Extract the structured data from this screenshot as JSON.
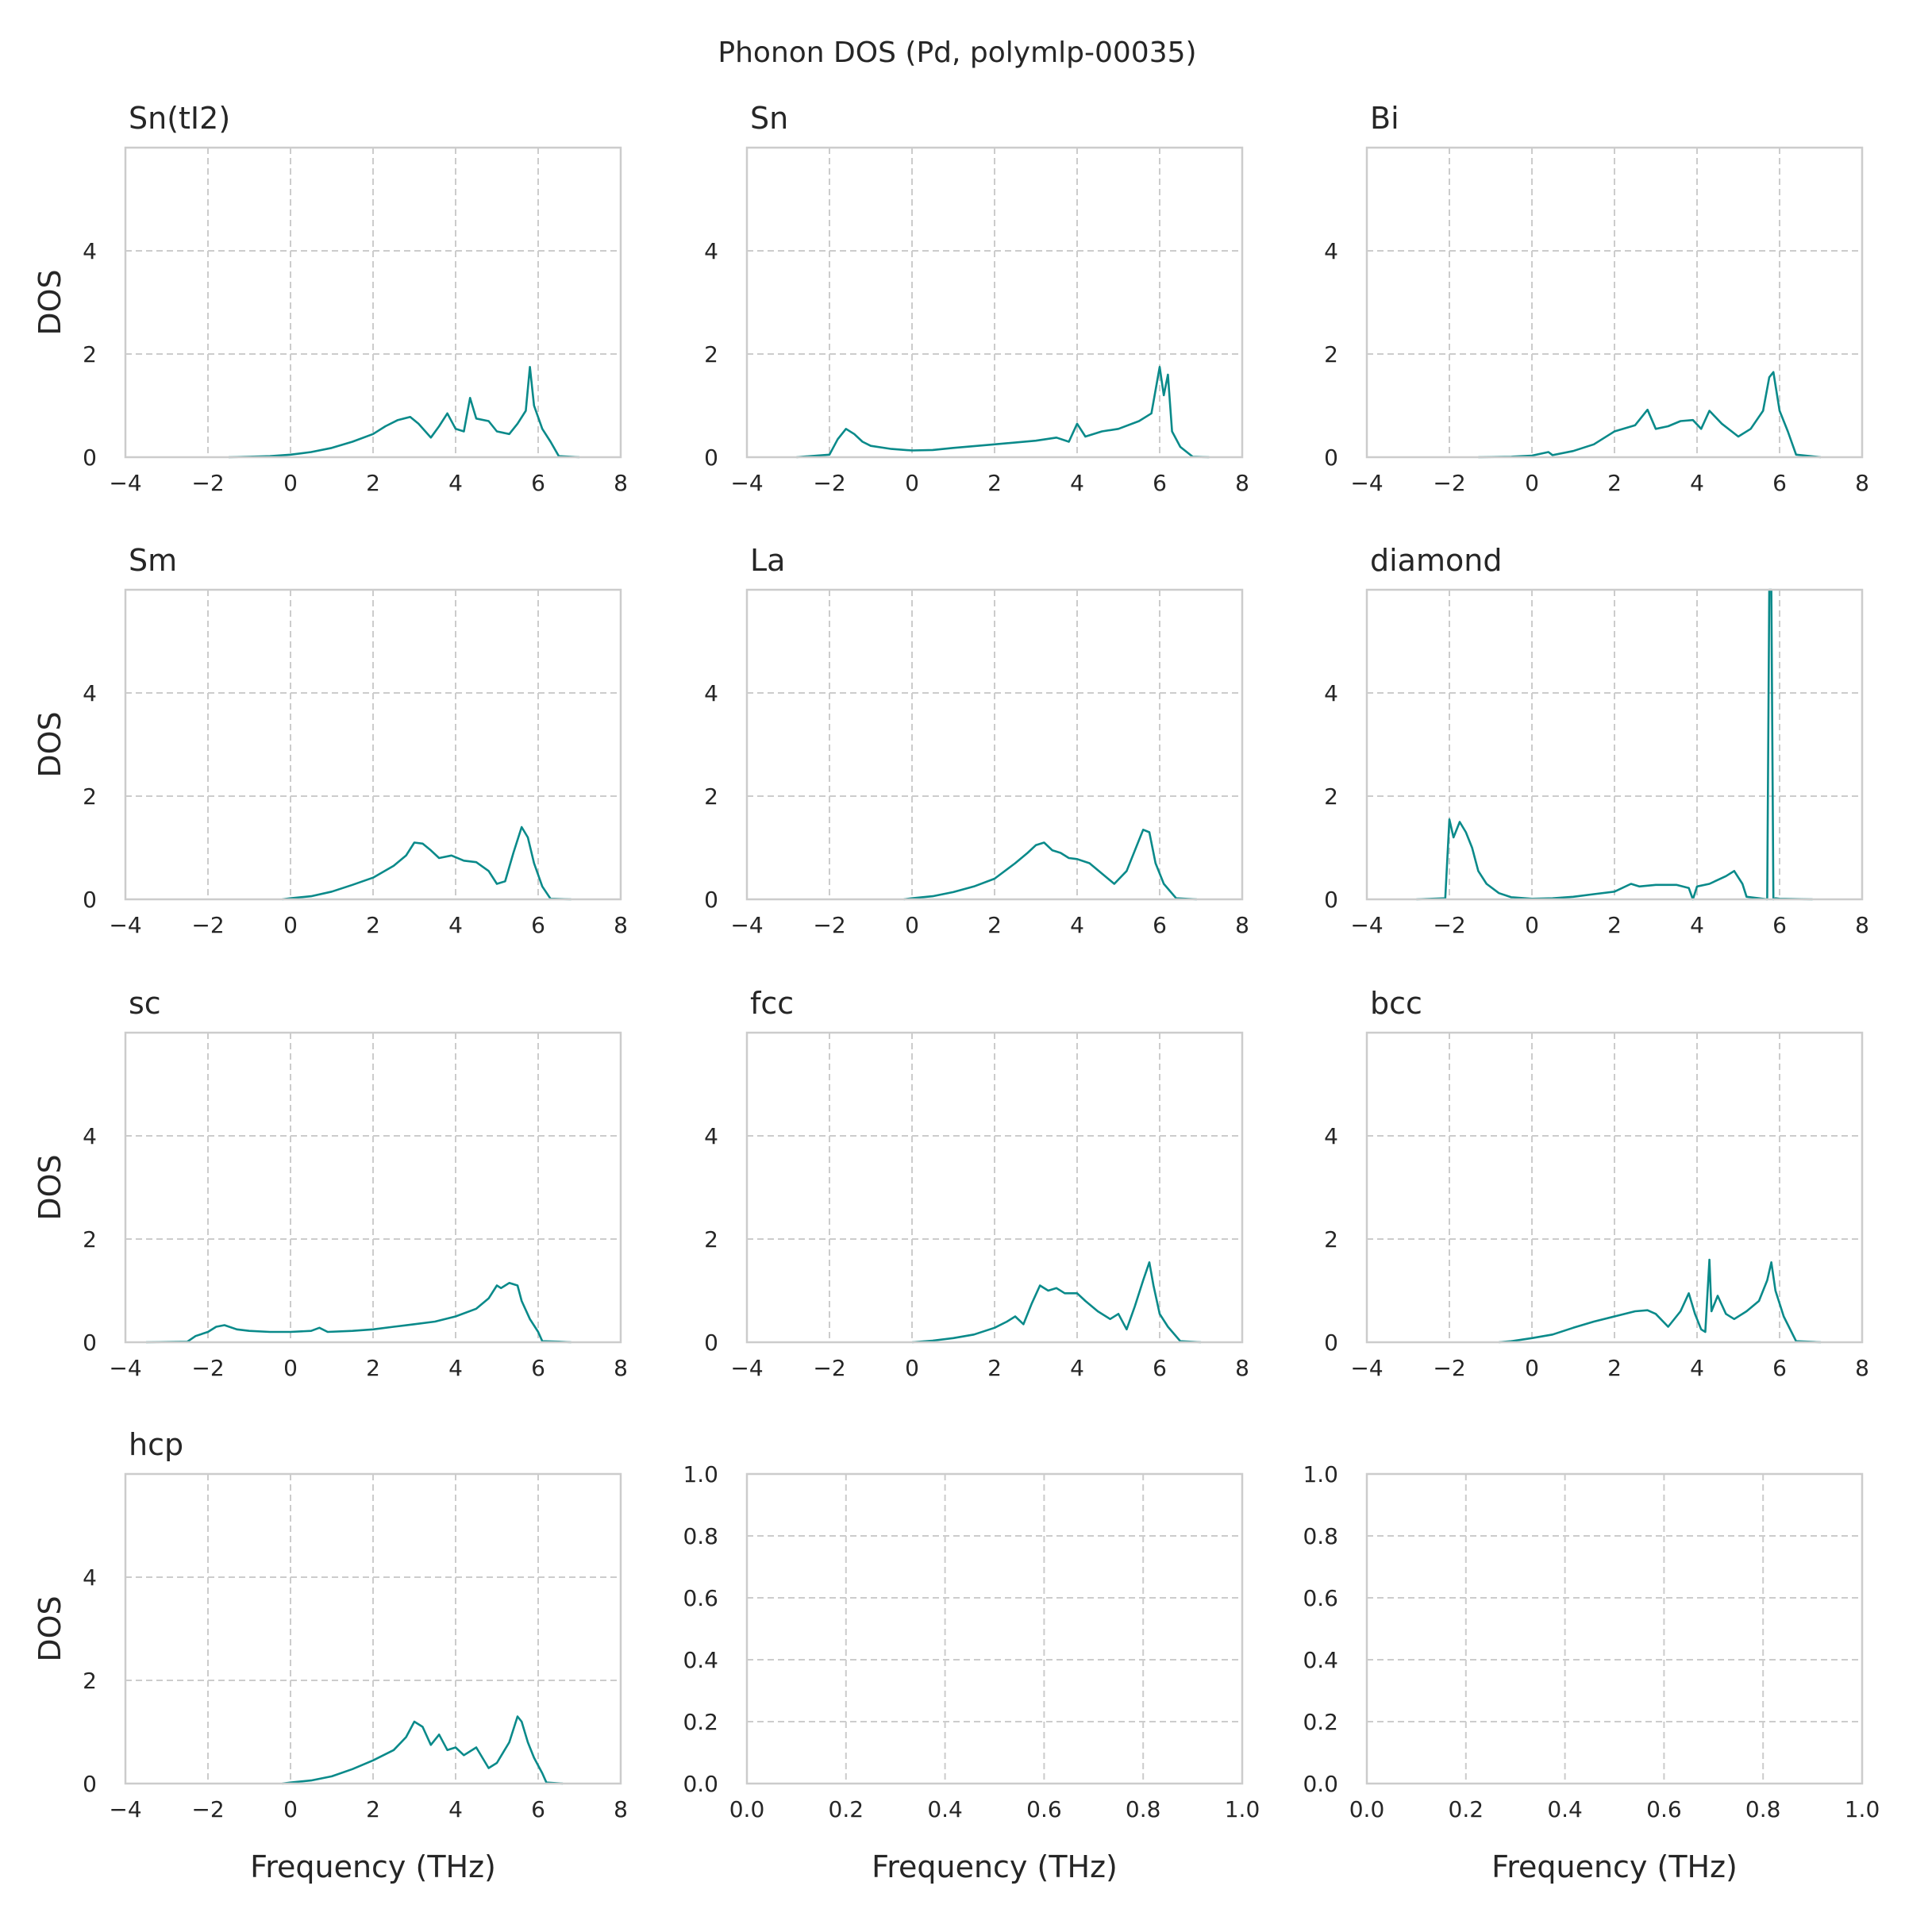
{
  "figure": {
    "title": "Phonon DOS (Pd, polymlp-00035)",
    "line_color": "#0a8a8a",
    "grid_color": "#cccccc",
    "frame_color": "#cccccc"
  },
  "chart_data": [
    {
      "type": "line",
      "title": "Sn(tI2)",
      "xlabel": "",
      "ylabel": "DOS",
      "xlim": [
        -4,
        8
      ],
      "ylim": [
        0,
        6
      ],
      "xticks": [
        -4,
        -2,
        0,
        2,
        4,
        6,
        8
      ],
      "yticks": [
        0,
        2,
        4
      ],
      "grid": true,
      "x": [
        -1.5,
        -1.0,
        -0.5,
        0.0,
        0.5,
        1.0,
        1.5,
        2.0,
        2.3,
        2.6,
        2.9,
        3.1,
        3.4,
        3.6,
        3.8,
        4.0,
        4.2,
        4.35,
        4.5,
        4.8,
        5.0,
        5.3,
        5.5,
        5.7,
        5.8,
        5.9,
        6.1,
        6.3,
        6.5,
        7.0
      ],
      "y": [
        0.0,
        0.01,
        0.02,
        0.05,
        0.1,
        0.18,
        0.3,
        0.45,
        0.6,
        0.72,
        0.78,
        0.65,
        0.38,
        0.6,
        0.85,
        0.55,
        0.5,
        1.15,
        0.75,
        0.7,
        0.5,
        0.45,
        0.65,
        0.9,
        1.75,
        1.0,
        0.55,
        0.3,
        0.02,
        0.0
      ]
    },
    {
      "type": "line",
      "title": "Sn",
      "xlabel": "",
      "ylabel": "",
      "xlim": [
        -4,
        8
      ],
      "ylim": [
        0,
        6
      ],
      "xticks": [
        -4,
        -2,
        0,
        2,
        4,
        6,
        8
      ],
      "yticks": [
        0,
        2,
        4
      ],
      "grid": true,
      "x": [
        -2.8,
        -2.0,
        -1.8,
        -1.6,
        -1.4,
        -1.2,
        -1.0,
        -0.5,
        0.0,
        0.5,
        1.0,
        2.0,
        3.0,
        3.5,
        3.8,
        4.0,
        4.2,
        4.6,
        5.0,
        5.5,
        5.8,
        6.0,
        6.1,
        6.2,
        6.3,
        6.5,
        6.8,
        7.2
      ],
      "y": [
        0.0,
        0.05,
        0.35,
        0.55,
        0.45,
        0.3,
        0.22,
        0.16,
        0.13,
        0.14,
        0.18,
        0.25,
        0.32,
        0.38,
        0.3,
        0.65,
        0.4,
        0.5,
        0.55,
        0.7,
        0.85,
        1.75,
        1.2,
        1.6,
        0.5,
        0.2,
        0.01,
        0.0
      ]
    },
    {
      "type": "line",
      "title": "Bi",
      "xlabel": "",
      "ylabel": "",
      "xlim": [
        -4,
        8
      ],
      "ylim": [
        0,
        6
      ],
      "xticks": [
        -4,
        -2,
        0,
        2,
        4,
        6,
        8
      ],
      "yticks": [
        0,
        2,
        4
      ],
      "grid": true,
      "x": [
        -1.3,
        -0.5,
        0.0,
        0.4,
        0.5,
        1.0,
        1.5,
        2.0,
        2.5,
        2.8,
        3.0,
        3.3,
        3.6,
        3.9,
        4.1,
        4.3,
        4.6,
        5.0,
        5.3,
        5.6,
        5.75,
        5.85,
        6.0,
        6.2,
        6.4,
        7.0
      ],
      "y": [
        0.0,
        0.01,
        0.03,
        0.1,
        0.04,
        0.12,
        0.25,
        0.5,
        0.62,
        0.92,
        0.55,
        0.6,
        0.7,
        0.72,
        0.55,
        0.9,
        0.65,
        0.4,
        0.55,
        0.9,
        1.55,
        1.65,
        0.9,
        0.5,
        0.05,
        0.0
      ]
    },
    {
      "type": "line",
      "title": "Sm",
      "xlabel": "",
      "ylabel": "DOS",
      "xlim": [
        -4,
        8
      ],
      "ylim": [
        0,
        6
      ],
      "xticks": [
        -4,
        -2,
        0,
        2,
        4,
        6,
        8
      ],
      "yticks": [
        0,
        2,
        4
      ],
      "grid": true,
      "x": [
        -0.2,
        0.0,
        0.5,
        1.0,
        1.5,
        2.0,
        2.5,
        2.8,
        3.0,
        3.2,
        3.4,
        3.6,
        3.9,
        4.2,
        4.5,
        4.8,
        5.0,
        5.2,
        5.4,
        5.6,
        5.75,
        5.9,
        6.1,
        6.3,
        6.8
      ],
      "y": [
        0.0,
        0.02,
        0.06,
        0.15,
        0.28,
        0.42,
        0.65,
        0.85,
        1.1,
        1.08,
        0.95,
        0.8,
        0.85,
        0.75,
        0.72,
        0.55,
        0.3,
        0.35,
        0.9,
        1.4,
        1.2,
        0.7,
        0.25,
        0.01,
        0.0
      ]
    },
    {
      "type": "line",
      "title": "La",
      "xlabel": "",
      "ylabel": "",
      "xlim": [
        -4,
        8
      ],
      "ylim": [
        0,
        6
      ],
      "xticks": [
        -4,
        -2,
        0,
        2,
        4,
        6,
        8
      ],
      "yticks": [
        0,
        2,
        4
      ],
      "grid": true,
      "x": [
        -0.2,
        0.0,
        0.5,
        1.0,
        1.5,
        2.0,
        2.5,
        2.8,
        3.0,
        3.2,
        3.4,
        3.6,
        3.8,
        4.0,
        4.3,
        4.6,
        4.9,
        5.2,
        5.4,
        5.6,
        5.75,
        5.9,
        6.1,
        6.4,
        6.9
      ],
      "y": [
        0.0,
        0.02,
        0.06,
        0.14,
        0.25,
        0.4,
        0.7,
        0.9,
        1.05,
        1.1,
        0.95,
        0.9,
        0.8,
        0.78,
        0.7,
        0.5,
        0.3,
        0.55,
        0.95,
        1.35,
        1.3,
        0.7,
        0.3,
        0.02,
        0.0
      ]
    },
    {
      "type": "line",
      "title": "diamond",
      "xlabel": "",
      "ylabel": "",
      "xlim": [
        -4,
        8
      ],
      "ylim": [
        0,
        6
      ],
      "xticks": [
        -4,
        -2,
        0,
        2,
        4,
        6,
        8
      ],
      "yticks": [
        0,
        2,
        4
      ],
      "grid": true,
      "x": [
        -2.8,
        -2.1,
        -2.0,
        -1.9,
        -1.75,
        -1.6,
        -1.45,
        -1.3,
        -1.1,
        -0.8,
        -0.5,
        0.0,
        0.5,
        1.0,
        1.5,
        2.0,
        2.4,
        2.6,
        3.0,
        3.5,
        3.8,
        3.9,
        4.0,
        4.3,
        4.7,
        4.9,
        5.1,
        5.2,
        5.5,
        5.7,
        5.75,
        5.8,
        5.85,
        5.9,
        6.0,
        6.8
      ],
      "y": [
        0.0,
        0.02,
        1.55,
        1.2,
        1.5,
        1.3,
        1.0,
        0.55,
        0.3,
        0.12,
        0.04,
        0.01,
        0.02,
        0.05,
        0.1,
        0.15,
        0.3,
        0.25,
        0.28,
        0.28,
        0.22,
        0.0,
        0.25,
        0.3,
        0.45,
        0.55,
        0.3,
        0.05,
        0.02,
        0.0,
        6.0,
        6.0,
        0.0,
        0.02,
        0.01,
        0.0
      ]
    },
    {
      "type": "line",
      "title": "sc",
      "xlabel": "",
      "ylabel": "DOS",
      "xlim": [
        -4,
        8
      ],
      "ylim": [
        0,
        6
      ],
      "xticks": [
        -4,
        -2,
        0,
        2,
        4,
        6,
        8
      ],
      "yticks": [
        0,
        2,
        4
      ],
      "grid": true,
      "x": [
        -3.5,
        -2.5,
        -2.3,
        -2.0,
        -1.8,
        -1.6,
        -1.3,
        -1.0,
        -0.5,
        0.0,
        0.5,
        0.7,
        0.9,
        1.5,
        2.0,
        2.5,
        3.0,
        3.5,
        4.0,
        4.5,
        4.8,
        5.0,
        5.1,
        5.3,
        5.5,
        5.6,
        5.8,
        6.0,
        6.1,
        6.5,
        6.8
      ],
      "y": [
        0.0,
        0.01,
        0.12,
        0.2,
        0.3,
        0.33,
        0.25,
        0.22,
        0.2,
        0.2,
        0.22,
        0.28,
        0.2,
        0.22,
        0.25,
        0.3,
        0.35,
        0.4,
        0.5,
        0.65,
        0.85,
        1.1,
        1.05,
        1.15,
        1.1,
        0.8,
        0.45,
        0.2,
        0.02,
        0.01,
        0.0
      ]
    },
    {
      "type": "line",
      "title": "fcc",
      "xlabel": "",
      "ylabel": "",
      "xlim": [
        -4,
        8
      ],
      "ylim": [
        0,
        6
      ],
      "xticks": [
        -4,
        -2,
        0,
        2,
        4,
        6,
        8
      ],
      "yticks": [
        0,
        2,
        4
      ],
      "grid": true,
      "x": [
        0.0,
        0.5,
        1.0,
        1.5,
        2.0,
        2.3,
        2.5,
        2.7,
        2.9,
        3.1,
        3.3,
        3.5,
        3.7,
        4.0,
        4.2,
        4.5,
        4.8,
        5.0,
        5.2,
        5.4,
        5.6,
        5.75,
        5.85,
        6.0,
        6.2,
        6.5,
        7.0
      ],
      "y": [
        0.0,
        0.03,
        0.08,
        0.15,
        0.28,
        0.4,
        0.5,
        0.35,
        0.75,
        1.1,
        1.0,
        1.05,
        0.95,
        0.95,
        0.8,
        0.6,
        0.45,
        0.55,
        0.25,
        0.7,
        1.2,
        1.55,
        1.1,
        0.55,
        0.3,
        0.02,
        0.0
      ]
    },
    {
      "type": "line",
      "title": "bcc",
      "xlabel": "",
      "ylabel": "",
      "xlim": [
        -4,
        8
      ],
      "ylim": [
        0,
        6
      ],
      "xticks": [
        -4,
        -2,
        0,
        2,
        4,
        6,
        8
      ],
      "yticks": [
        0,
        2,
        4
      ],
      "grid": true,
      "x": [
        -0.8,
        -0.5,
        0.0,
        0.5,
        1.0,
        1.5,
        2.0,
        2.5,
        2.8,
        3.0,
        3.3,
        3.6,
        3.8,
        3.95,
        4.1,
        4.2,
        4.3,
        4.35,
        4.5,
        4.7,
        4.9,
        5.2,
        5.5,
        5.7,
        5.8,
        5.9,
        6.1,
        6.4,
        7.0
      ],
      "y": [
        0.0,
        0.02,
        0.08,
        0.15,
        0.28,
        0.4,
        0.5,
        0.6,
        0.62,
        0.55,
        0.3,
        0.6,
        0.95,
        0.55,
        0.25,
        0.2,
        1.6,
        0.6,
        0.9,
        0.55,
        0.45,
        0.6,
        0.8,
        1.2,
        1.55,
        1.0,
        0.5,
        0.02,
        0.0
      ]
    },
    {
      "type": "line",
      "title": "hcp",
      "xlabel": "Frequency (THz)",
      "ylabel": "DOS",
      "xlim": [
        -4,
        8
      ],
      "ylim": [
        0,
        6
      ],
      "xticks": [
        -4,
        -2,
        0,
        2,
        4,
        6,
        8
      ],
      "yticks": [
        0,
        2,
        4
      ],
      "grid": true,
      "x": [
        -0.2,
        0.0,
        0.5,
        1.0,
        1.5,
        2.0,
        2.5,
        2.8,
        3.0,
        3.2,
        3.4,
        3.6,
        3.8,
        4.0,
        4.2,
        4.5,
        4.8,
        5.0,
        5.3,
        5.5,
        5.6,
        5.75,
        5.9,
        6.1,
        6.2,
        6.6
      ],
      "y": [
        0.0,
        0.02,
        0.06,
        0.14,
        0.28,
        0.45,
        0.65,
        0.9,
        1.2,
        1.1,
        0.75,
        0.95,
        0.65,
        0.7,
        0.55,
        0.7,
        0.3,
        0.4,
        0.8,
        1.3,
        1.2,
        0.8,
        0.5,
        0.2,
        0.02,
        0.0
      ]
    },
    {
      "type": "line",
      "title": "",
      "xlabel": "Frequency (THz)",
      "ylabel": "",
      "xlim": [
        0,
        1
      ],
      "ylim": [
        0,
        1
      ],
      "xticks": [
        0.0,
        0.2,
        0.4,
        0.6,
        0.8,
        1.0
      ],
      "yticks": [
        0.0,
        0.2,
        0.4,
        0.6,
        0.8,
        1.0
      ],
      "xticklabels": [
        "0.0",
        "0.2",
        "0.4",
        "0.6",
        "0.8",
        "1.0"
      ],
      "yticklabels": [
        "0.0",
        "0.2",
        "0.4",
        "0.6",
        "0.8",
        "1.0"
      ],
      "grid": true,
      "x": [],
      "y": []
    },
    {
      "type": "line",
      "title": "",
      "xlabel": "Frequency (THz)",
      "ylabel": "",
      "xlim": [
        0,
        1
      ],
      "ylim": [
        0,
        1
      ],
      "xticks": [
        0.0,
        0.2,
        0.4,
        0.6,
        0.8,
        1.0
      ],
      "yticks": [
        0.0,
        0.2,
        0.4,
        0.6,
        0.8,
        1.0
      ],
      "xticklabels": [
        "0.0",
        "0.2",
        "0.4",
        "0.6",
        "0.8",
        "1.0"
      ],
      "yticklabels": [
        "0.0",
        "0.2",
        "0.4",
        "0.6",
        "0.8",
        "1.0"
      ],
      "grid": true,
      "x": [],
      "y": []
    }
  ]
}
